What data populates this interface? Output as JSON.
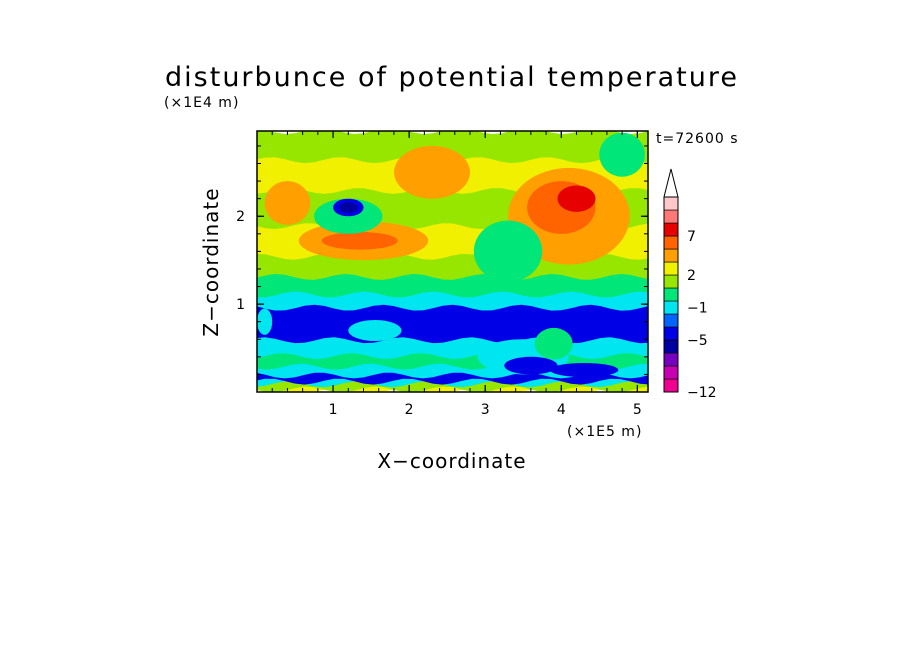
{
  "chart_data": {
    "type": "heatmap",
    "title": "disturbunce of potential temperature",
    "xlabel": "X−coordinate",
    "ylabel": "Z−coordinate",
    "x_unit": "(×1E5 m)",
    "y_unit": "(×1E4 m)",
    "time_label": "t=72600 s",
    "xlim": [
      0,
      5.14
    ],
    "ylim": [
      0,
      2.97
    ],
    "x_ticks": [
      {
        "value": 1,
        "label": "1"
      },
      {
        "value": 2,
        "label": "2"
      },
      {
        "value": 3,
        "label": "3"
      },
      {
        "value": 4,
        "label": "4"
      },
      {
        "value": 5,
        "label": "5"
      }
    ],
    "y_ticks": [
      {
        "value": 1,
        "label": "1"
      },
      {
        "value": 2,
        "label": "2"
      }
    ],
    "colorbar": {
      "levels": [
        {
          "color": "#f00090"
        },
        {
          "color": "#c800b4"
        },
        {
          "color": "#7800c0"
        },
        {
          "color": "#0000a0"
        },
        {
          "color": "#0000e6"
        },
        {
          "color": "#0064ff"
        },
        {
          "color": "#00e6f0"
        },
        {
          "color": "#00e678"
        },
        {
          "color": "#96e600"
        },
        {
          "color": "#f0f000"
        },
        {
          "color": "#ffa000"
        },
        {
          "color": "#ff6400"
        },
        {
          "color": "#e60000"
        },
        {
          "color": "#ff7878"
        },
        {
          "color": "#ffc8c8"
        }
      ],
      "labels": [
        {
          "text": "−12",
          "band": 0
        },
        {
          "text": "−5",
          "band": 4
        },
        {
          "text": "−1",
          "band": 6.5
        },
        {
          "text": "2",
          "band": 9
        },
        {
          "text": "7",
          "band": 12
        }
      ],
      "over_triangle": true
    },
    "bands": [
      {
        "z": [
          0.0,
          0.04
        ],
        "level": 9
      },
      {
        "z": [
          0.04,
          0.1
        ],
        "level": 8
      },
      {
        "z": [
          0.1,
          0.13
        ],
        "level": 6
      },
      {
        "z": [
          0.13,
          0.2
        ],
        "level": 4
      },
      {
        "z": [
          0.2,
          0.3
        ],
        "level": 6
      },
      {
        "z": [
          0.3,
          0.42
        ],
        "level": 7
      },
      {
        "z": [
          0.42,
          0.6
        ],
        "level": 6
      },
      {
        "z": [
          0.6,
          0.97
        ],
        "level": 4
      },
      {
        "z": [
          0.97,
          1.12
        ],
        "level": 6
      },
      {
        "z": [
          1.12,
          1.32
        ],
        "level": 7
      },
      {
        "z": [
          1.32,
          1.55
        ],
        "level": 8
      },
      {
        "z": [
          1.55,
          1.9
        ],
        "level": 9
      },
      {
        "z": [
          1.9,
          2.3
        ],
        "level": 8
      },
      {
        "z": [
          2.3,
          2.65
        ],
        "level": 9
      },
      {
        "z": [
          2.65,
          2.97
        ],
        "level": 8
      }
    ],
    "blobs": [
      {
        "x": 1.4,
        "z": 1.72,
        "rx": 0.85,
        "rz": 0.22,
        "level": 10
      },
      {
        "x": 1.35,
        "z": 1.72,
        "rx": 0.5,
        "rz": 0.1,
        "level": 11
      },
      {
        "x": 0.4,
        "z": 2.15,
        "rx": 0.3,
        "rz": 0.25,
        "level": 10
      },
      {
        "x": 1.2,
        "z": 2.0,
        "rx": 0.45,
        "rz": 0.2,
        "level": 7
      },
      {
        "x": 1.2,
        "z": 2.1,
        "rx": 0.2,
        "rz": 0.1,
        "level": 4
      },
      {
        "x": 1.2,
        "z": 2.1,
        "rx": 0.12,
        "rz": 0.06,
        "level": 3
      },
      {
        "x": 2.3,
        "z": 2.5,
        "rx": 0.5,
        "rz": 0.3,
        "level": 10
      },
      {
        "x": 4.1,
        "z": 2.0,
        "rx": 0.8,
        "rz": 0.55,
        "level": 10
      },
      {
        "x": 4.0,
        "z": 2.1,
        "rx": 0.45,
        "rz": 0.3,
        "level": 11
      },
      {
        "x": 4.2,
        "z": 2.2,
        "rx": 0.25,
        "rz": 0.15,
        "level": 12
      },
      {
        "x": 3.3,
        "z": 1.6,
        "rx": 0.45,
        "rz": 0.35,
        "level": 7
      },
      {
        "x": 4.8,
        "z": 2.7,
        "rx": 0.3,
        "rz": 0.25,
        "level": 7
      },
      {
        "x": 0.1,
        "z": 0.8,
        "rx": 0.1,
        "rz": 0.15,
        "level": 6
      },
      {
        "x": 1.55,
        "z": 0.7,
        "rx": 0.35,
        "rz": 0.12,
        "level": 6
      },
      {
        "x": 3.5,
        "z": 0.4,
        "rx": 0.6,
        "rz": 0.2,
        "level": 6
      },
      {
        "x": 3.6,
        "z": 0.3,
        "rx": 0.35,
        "rz": 0.1,
        "level": 4
      },
      {
        "x": 4.3,
        "z": 0.25,
        "rx": 0.45,
        "rz": 0.08,
        "level": 4
      },
      {
        "x": 3.9,
        "z": 0.55,
        "rx": 0.25,
        "rz": 0.18,
        "level": 7
      }
    ]
  }
}
